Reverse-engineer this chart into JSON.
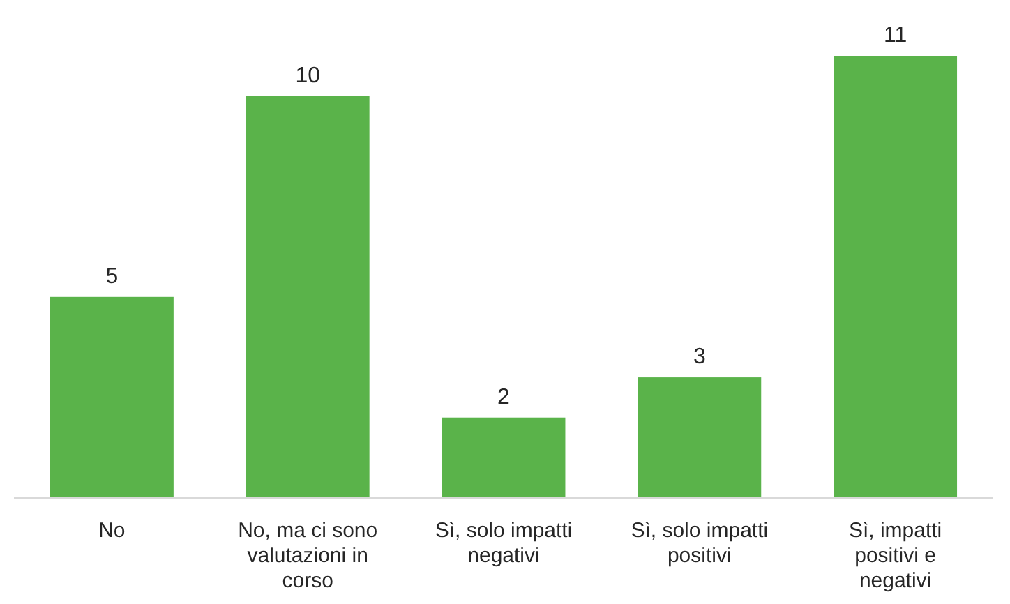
{
  "chart_data": {
    "type": "bar",
    "categories": [
      "No",
      "No, ma ci sono valutazioni in corso",
      "Sì, solo impatti negativi",
      "Sì, solo impatti positivi",
      "Sì, impatti positivi e negativi"
    ],
    "values": [
      5,
      10,
      2,
      3,
      11
    ],
    "color": "#5ab34a",
    "data_labels": true,
    "grid": false
  }
}
